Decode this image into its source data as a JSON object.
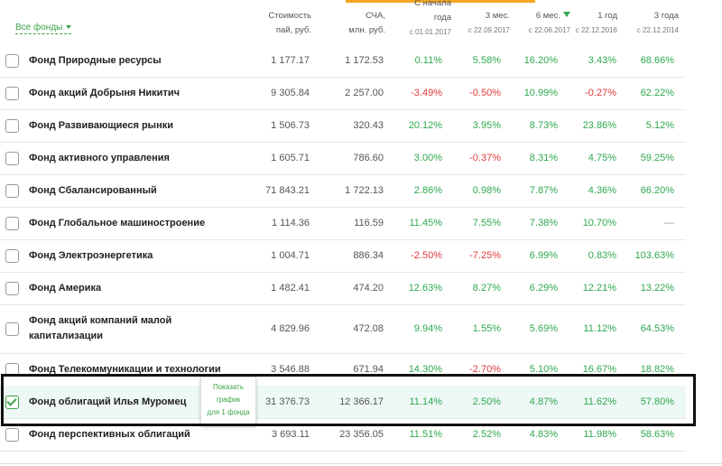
{
  "filter": {
    "label": "Все фонды"
  },
  "columns": [
    {
      "key": "price",
      "line1": "Стоимость",
      "line2": "пай, руб."
    },
    {
      "key": "nav",
      "line1": "СЧА,",
      "line2": "млн. руб."
    },
    {
      "key": "ytd",
      "line1": "года",
      "line2": "с 01.01.2017",
      "group": "С начала"
    },
    {
      "key": "m3",
      "line1": "3 мес.",
      "line2": "с 22.09.2017"
    },
    {
      "key": "m6",
      "line1": "6 мес.",
      "line2": "с 22.06.2017",
      "sorted": true
    },
    {
      "key": "y1",
      "line1": "1 год",
      "line2": "с 22.12.2016"
    },
    {
      "key": "y3",
      "line1": "3 года",
      "line2": "с 22.12.2014"
    }
  ],
  "accent_color": "#2fa84f",
  "negative_color": "#e03a3a",
  "rows": [
    {
      "name": "Фонд Природные ресурсы",
      "price": "1 177.17",
      "nav": "1 172.53",
      "ytd": "0.11%",
      "m3": "5.58%",
      "m6": "16.20%",
      "y1": "3.43%",
      "y3": "68.66%",
      "checked": false
    },
    {
      "name": "Фонд акций Добрыня Никитич",
      "price": "9 305.84",
      "nav": "2 257.00",
      "ytd": "-3.49%",
      "m3": "-0.50%",
      "m6": "10.99%",
      "y1": "-0.27%",
      "y3": "62.22%",
      "checked": false
    },
    {
      "name": "Фонд Развивающиеся рынки",
      "price": "1 506.73",
      "nav": "320.43",
      "ytd": "20.12%",
      "m3": "3.95%",
      "m6": "8.73%",
      "y1": "23.86%",
      "y3": "5.12%",
      "checked": false
    },
    {
      "name": "Фонд активного управления",
      "price": "1 605.71",
      "nav": "786.60",
      "ytd": "3.00%",
      "m3": "-0.37%",
      "m6": "8.31%",
      "y1": "4.75%",
      "y3": "59.25%",
      "checked": false
    },
    {
      "name": "Фонд Сбалансированный",
      "price": "71 843.21",
      "nav": "1 722.13",
      "ytd": "2.86%",
      "m3": "0.98%",
      "m6": "7.87%",
      "y1": "4.36%",
      "y3": "66.20%",
      "checked": false
    },
    {
      "name": "Фонд Глобальное машиностроение",
      "price": "1 114.36",
      "nav": "116.59",
      "ytd": "11.45%",
      "m3": "7.55%",
      "m6": "7.38%",
      "y1": "10.70%",
      "y3": "—",
      "checked": false
    },
    {
      "name": "Фонд Электроэнергетика",
      "price": "1 004.71",
      "nav": "886.34",
      "ytd": "-2.50%",
      "m3": "-7.25%",
      "m6": "6.99%",
      "y1": "0.83%",
      "y3": "103.63%",
      "checked": false
    },
    {
      "name": "Фонд Америка",
      "price": "1 482.41",
      "nav": "474.20",
      "ytd": "12.63%",
      "m3": "8.27%",
      "m6": "6.29%",
      "y1": "12.21%",
      "y3": "13.22%",
      "checked": false
    },
    {
      "name": "Фонд акций компаний малой капитализации",
      "price": "4 829.96",
      "nav": "472.08",
      "ytd": "9.94%",
      "m3": "1.55%",
      "m6": "5.69%",
      "y1": "11.12%",
      "y3": "64.53%",
      "checked": false
    },
    {
      "name": "Фонд Телекоммуникации и технологии",
      "price": "3 546.88",
      "nav": "671.94",
      "ytd": "14.30%",
      "m3": "-2.70%",
      "m6": "5.10%",
      "y1": "16.67%",
      "y3": "18.82%",
      "checked": false
    },
    {
      "name": "Фонд облигаций Илья Муромец",
      "price": "31 376.73",
      "nav": "12 366.17",
      "ytd": "11.14%",
      "m3": "2.50%",
      "m6": "4.87%",
      "y1": "11.62%",
      "y3": "57.80%",
      "checked": true
    },
    {
      "name": "Фонд перспективных облигаций",
      "price": "3 693.11",
      "nav": "23 356.05",
      "ytd": "11.51%",
      "m3": "2.52%",
      "m6": "4.83%",
      "y1": "11.98%",
      "y3": "58.63%",
      "checked": false
    }
  ],
  "tooltip": {
    "line1": "Показать",
    "line2": "график",
    "line3": "для 1 фонда"
  }
}
